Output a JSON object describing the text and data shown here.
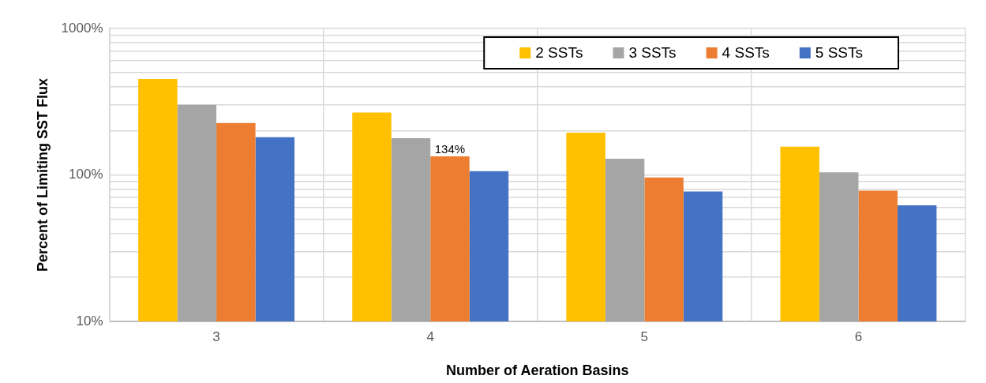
{
  "chart_data": {
    "type": "bar",
    "xlabel": "Number of Aeration Basins",
    "ylabel": "Percent of Limiting SST Flux",
    "categories": [
      "3",
      "4",
      "5",
      "6"
    ],
    "series": [
      {
        "name": "2 SSTs",
        "color": "#ffc000",
        "values": [
          452,
          267,
          194,
          156
        ]
      },
      {
        "name": "3 SSTs",
        "color": "#a5a5a5",
        "values": [
          301,
          178,
          129,
          104
        ]
      },
      {
        "name": "4 SSTs",
        "color": "#ed7d31",
        "values": [
          226,
          134,
          96,
          78
        ],
        "value_labels": [
          null,
          "134%",
          null,
          null
        ]
      },
      {
        "name": "5 SSTs",
        "color": "#4472c4",
        "values": [
          181,
          106,
          77,
          62
        ]
      }
    ],
    "log": "y",
    "ylim": [
      10,
      1000
    ],
    "yticks": [
      {
        "value": 10,
        "label": "10%"
      },
      {
        "value": 20,
        "label": null
      },
      {
        "value": 30,
        "label": null
      },
      {
        "value": 40,
        "label": null
      },
      {
        "value": 50,
        "label": null
      },
      {
        "value": 60,
        "label": null
      },
      {
        "value": 70,
        "label": null
      },
      {
        "value": 80,
        "label": null
      },
      {
        "value": 90,
        "label": null
      },
      {
        "value": 100,
        "label": "100%"
      },
      {
        "value": 200,
        "label": null
      },
      {
        "value": 300,
        "label": null
      },
      {
        "value": 400,
        "label": null
      },
      {
        "value": 500,
        "label": null
      },
      {
        "value": 600,
        "label": null
      },
      {
        "value": 700,
        "label": null
      },
      {
        "value": 800,
        "label": null
      },
      {
        "value": 900,
        "label": null
      },
      {
        "value": 1000,
        "label": "1000%"
      }
    ],
    "grid": true,
    "legend": "top right"
  }
}
